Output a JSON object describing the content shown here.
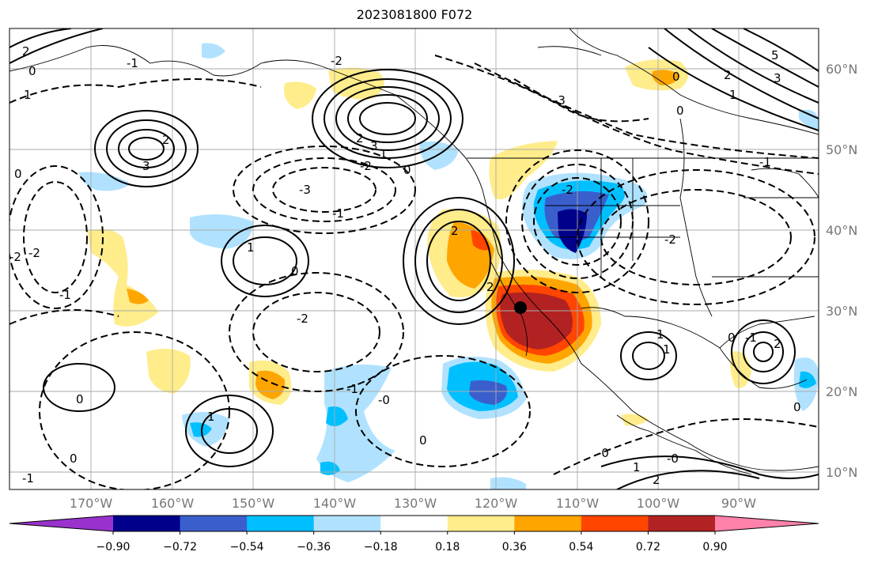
{
  "title": "2023081800 F072",
  "lon_ticks": [
    "170°W",
    "160°W",
    "150°W",
    "140°W",
    "130°W",
    "120°W",
    "110°W",
    "100°W",
    "90°W"
  ],
  "lat_ticks": [
    "60°N",
    "50°N",
    "40°N",
    "30°N",
    "20°N",
    "10°N"
  ],
  "colorbar": {
    "ticks": [
      "−0.90",
      "−0.72",
      "−0.54",
      "−0.36",
      "−0.18",
      "0.18",
      "0.36",
      "0.54",
      "0.72",
      "0.90"
    ],
    "colors": [
      "#9932cc",
      "#00008b",
      "#3a5fcd",
      "#00bfff",
      "#b0e2ff",
      "#ffffff",
      "#ffec8b",
      "#ffa500",
      "#ff4500",
      "#b22222",
      "#ff82ab"
    ]
  },
  "contour_labels": [
    "2",
    "0",
    "1",
    "-1",
    "2",
    "3",
    "3",
    "2",
    "1",
    "0",
    "-2",
    "-3",
    "-2",
    "-1",
    "-2",
    "-1",
    "0",
    "1",
    "0",
    "2",
    "-2",
    "2",
    "-1",
    "-0",
    "1",
    "0",
    "0",
    "1",
    "1",
    "0",
    "0",
    "2",
    "-1",
    "-0",
    "-0",
    "-3",
    "-2",
    "0",
    "-1",
    "2",
    "1",
    "0",
    "-2",
    "5",
    "3",
    "2",
    "1",
    "-2",
    "0",
    "-1"
  ]
}
